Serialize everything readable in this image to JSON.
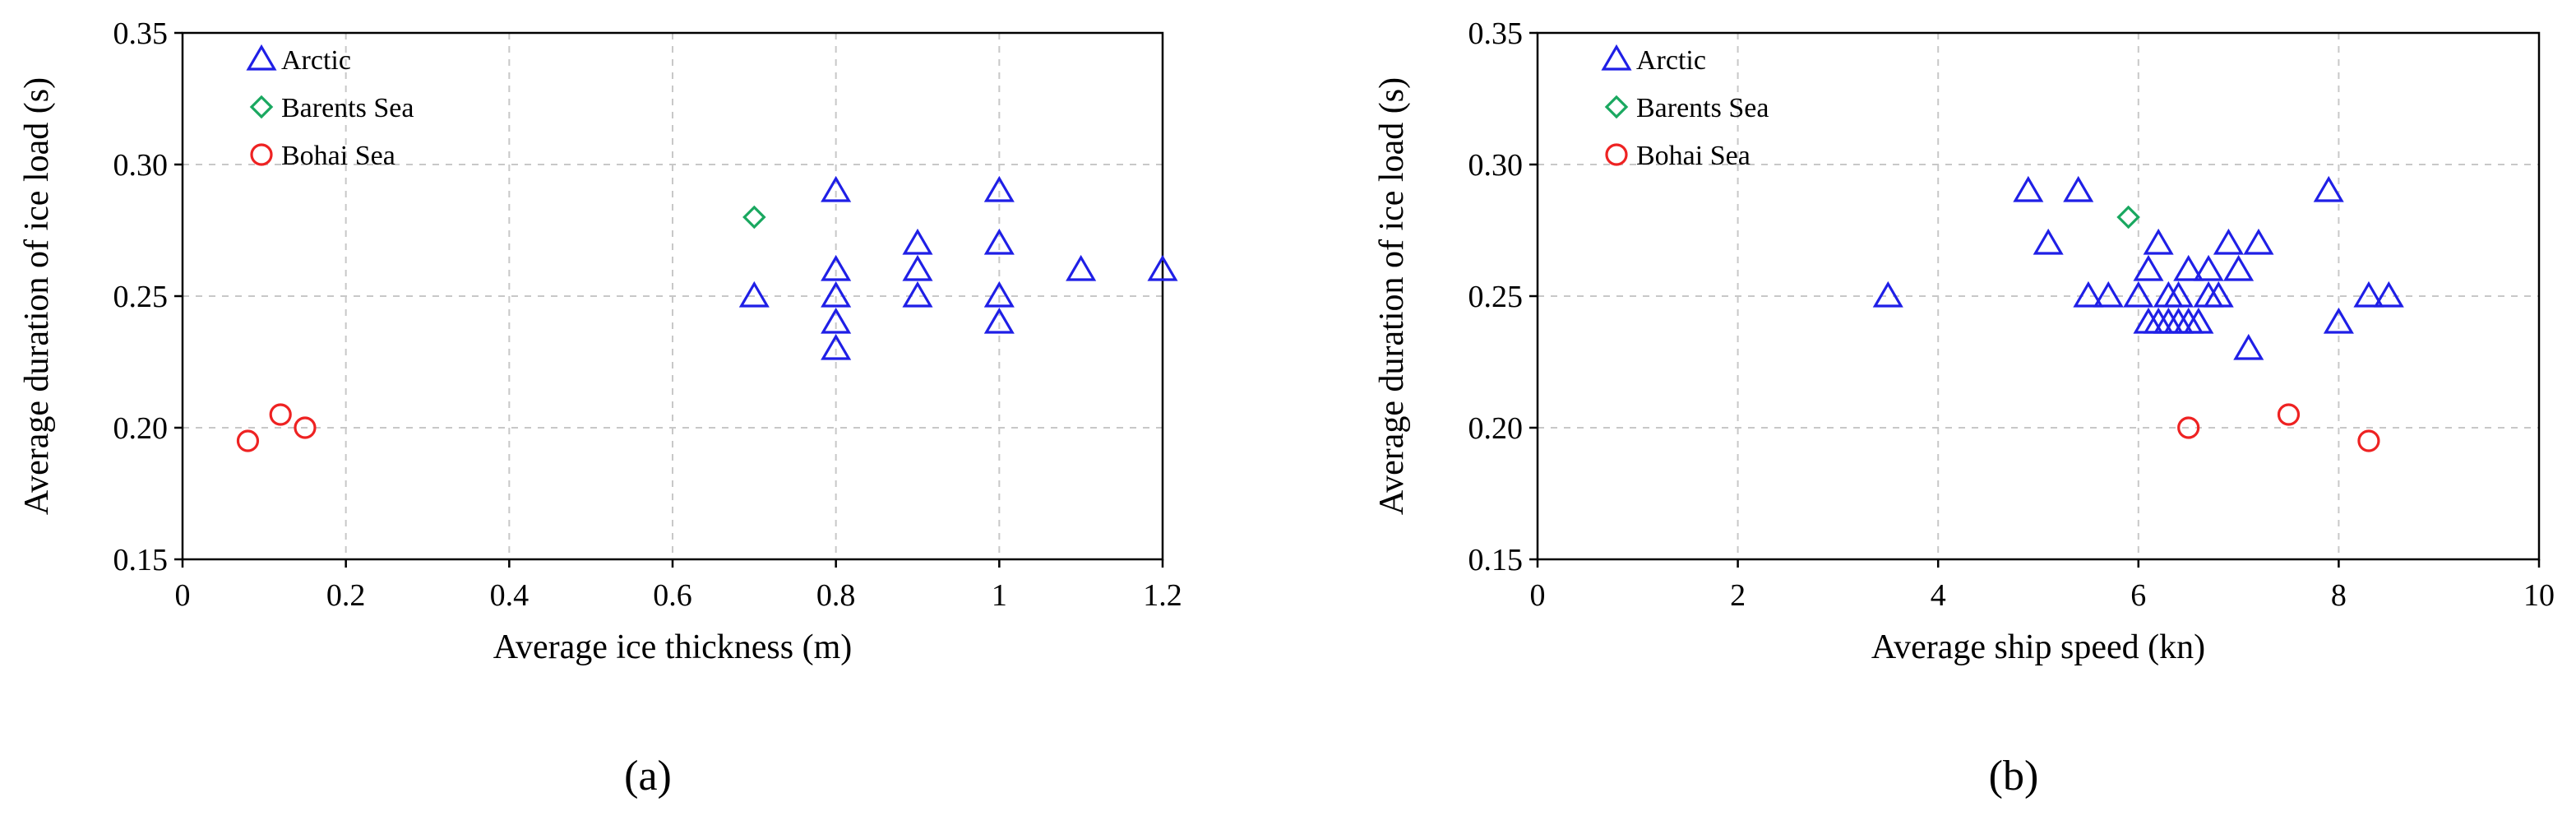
{
  "chart_data": [
    {
      "type": "scatter",
      "panel_label": "(a)",
      "xlabel": "Average ice thickness (m)",
      "ylabel": "Average duration of ice load (s)",
      "xlim": [
        0,
        1.2
      ],
      "ylim": [
        0.15,
        0.35
      ],
      "xticks": [
        0,
        0.2,
        0.4,
        0.6,
        0.8,
        1,
        1.2
      ],
      "xtick_labels": [
        "0",
        "0.2",
        "0.4",
        "0.6",
        "0.8",
        "1",
        "1.2"
      ],
      "yticks": [
        0.15,
        0.2,
        0.25,
        0.3,
        0.35
      ],
      "ytick_labels": [
        "0.15",
        "0.20",
        "0.25",
        "0.30",
        "0.35"
      ],
      "grid": true,
      "legend_position": "top-left",
      "series": [
        {
          "name": "Arctic",
          "marker": "triangle",
          "color": "#1f1fe6",
          "points": [
            [
              0.7,
              0.25
            ],
            [
              0.8,
              0.29
            ],
            [
              0.8,
              0.26
            ],
            [
              0.8,
              0.25
            ],
            [
              0.8,
              0.24
            ],
            [
              0.8,
              0.23
            ],
            [
              0.9,
              0.27
            ],
            [
              0.9,
              0.26
            ],
            [
              0.9,
              0.25
            ],
            [
              1.0,
              0.29
            ],
            [
              1.0,
              0.27
            ],
            [
              1.0,
              0.25
            ],
            [
              1.0,
              0.24
            ],
            [
              1.1,
              0.26
            ],
            [
              1.2,
              0.26
            ]
          ]
        },
        {
          "name": "Barents Sea",
          "marker": "diamond",
          "color": "#1aa860",
          "points": [
            [
              0.7,
              0.28
            ]
          ]
        },
        {
          "name": "Bohai Sea",
          "marker": "circle",
          "color": "#ee2222",
          "points": [
            [
              0.08,
              0.195
            ],
            [
              0.12,
              0.205
            ],
            [
              0.15,
              0.2
            ]
          ]
        }
      ]
    },
    {
      "type": "scatter",
      "panel_label": "(b)",
      "xlabel": "Average ship speed (kn)",
      "ylabel": "Average duration of ice load (s)",
      "xlim": [
        0,
        10
      ],
      "ylim": [
        0.15,
        0.35
      ],
      "xticks": [
        0,
        2,
        4,
        6,
        8,
        10
      ],
      "xtick_labels": [
        "0",
        "2",
        "4",
        "6",
        "8",
        "10"
      ],
      "yticks": [
        0.15,
        0.2,
        0.25,
        0.3,
        0.35
      ],
      "ytick_labels": [
        "0.15",
        "0.20",
        "0.25",
        "0.30",
        "0.35"
      ],
      "grid": true,
      "legend_position": "top-left",
      "series": [
        {
          "name": "Arctic",
          "marker": "triangle",
          "color": "#1f1fe6",
          "points": [
            [
              3.5,
              0.25
            ],
            [
              4.9,
              0.29
            ],
            [
              5.1,
              0.27
            ],
            [
              5.4,
              0.29
            ],
            [
              5.5,
              0.25
            ],
            [
              5.7,
              0.25
            ],
            [
              6.0,
              0.25
            ],
            [
              6.1,
              0.26
            ],
            [
              6.1,
              0.24
            ],
            [
              6.2,
              0.27
            ],
            [
              6.2,
              0.24
            ],
            [
              6.3,
              0.25
            ],
            [
              6.3,
              0.24
            ],
            [
              6.4,
              0.24
            ],
            [
              6.4,
              0.25
            ],
            [
              6.5,
              0.26
            ],
            [
              6.5,
              0.24
            ],
            [
              6.6,
              0.24
            ],
            [
              6.7,
              0.26
            ],
            [
              6.7,
              0.25
            ],
            [
              6.8,
              0.25
            ],
            [
              6.9,
              0.27
            ],
            [
              7.0,
              0.26
            ],
            [
              7.1,
              0.23
            ],
            [
              7.2,
              0.27
            ],
            [
              7.9,
              0.29
            ],
            [
              8.0,
              0.24
            ],
            [
              8.3,
              0.25
            ],
            [
              8.5,
              0.25
            ]
          ]
        },
        {
          "name": "Barents Sea",
          "marker": "diamond",
          "color": "#1aa860",
          "points": [
            [
              5.9,
              0.28
            ]
          ]
        },
        {
          "name": "Bohai Sea",
          "marker": "circle",
          "color": "#ee2222",
          "points": [
            [
              6.5,
              0.2
            ],
            [
              7.5,
              0.205
            ],
            [
              8.3,
              0.195
            ]
          ]
        }
      ]
    }
  ]
}
